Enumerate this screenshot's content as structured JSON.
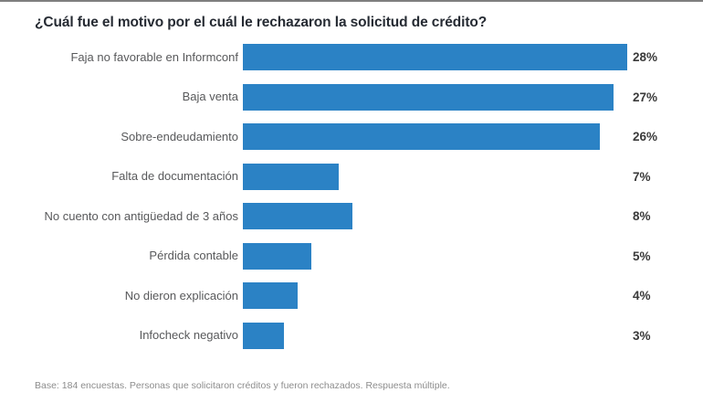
{
  "page": {
    "title": "¿Cuál fue el motivo por el cuál le rechazaron la solicitud de crédito?",
    "footnote": "Base: 184 encuestas. Personas que solicitaron créditos y fueron rechazados. Respuesta múltiple."
  },
  "chart_data": {
    "type": "bar",
    "orientation": "horizontal",
    "title": "¿Cuál fue el motivo por el cuál le rechazaron la solicitud de crédito?",
    "categories": [
      "Faja no favorable en Informconf",
      "Baja venta",
      "Sobre-endeudamiento",
      "Falta de documentación",
      "No cuento con antigüedad de 3 años",
      "Pérdida contable",
      "No dieron explicación",
      "Infocheck negativo"
    ],
    "values": [
      28,
      27,
      26,
      7,
      8,
      5,
      4,
      3
    ],
    "value_suffix": "%",
    "xlabel": "",
    "ylabel": "",
    "xlim": [
      0,
      28
    ],
    "grid": false,
    "legend": false,
    "data_labels": "outside-end",
    "annotation": "Base: 184 encuestas. Personas que solicitaron créditos y fueron rechazados. Respuesta múltiple."
  },
  "colors": {
    "bar": "#2b82c5",
    "title": "#262b33",
    "category_label": "#58595b",
    "value_label": "#3a3a3a",
    "footnote": "#8d8d8d",
    "top_rule": "#7f7f7f",
    "background": "#ffffff"
  }
}
